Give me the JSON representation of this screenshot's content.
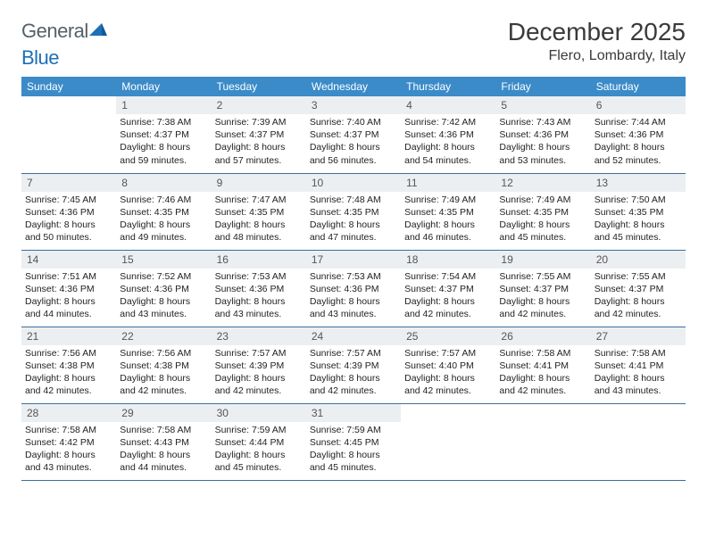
{
  "brand": {
    "part1": "General",
    "part2": "Blue"
  },
  "title": "December 2025",
  "location": "Flero, Lombardy, Italy",
  "colors": {
    "header_bg": "#3b8bc9",
    "header_text": "#ffffff",
    "daynum_bg": "#eceff1",
    "border": "#3b6fa0",
    "logo_gray": "#55606a",
    "logo_blue": "#1d6fb8"
  },
  "weekdays": [
    "Sunday",
    "Monday",
    "Tuesday",
    "Wednesday",
    "Thursday",
    "Friday",
    "Saturday"
  ],
  "weeks": [
    [
      {
        "n": "",
        "l1": "",
        "l2": "",
        "l3": "",
        "l4": ""
      },
      {
        "n": "1",
        "l1": "Sunrise: 7:38 AM",
        "l2": "Sunset: 4:37 PM",
        "l3": "Daylight: 8 hours",
        "l4": "and 59 minutes."
      },
      {
        "n": "2",
        "l1": "Sunrise: 7:39 AM",
        "l2": "Sunset: 4:37 PM",
        "l3": "Daylight: 8 hours",
        "l4": "and 57 minutes."
      },
      {
        "n": "3",
        "l1": "Sunrise: 7:40 AM",
        "l2": "Sunset: 4:37 PM",
        "l3": "Daylight: 8 hours",
        "l4": "and 56 minutes."
      },
      {
        "n": "4",
        "l1": "Sunrise: 7:42 AM",
        "l2": "Sunset: 4:36 PM",
        "l3": "Daylight: 8 hours",
        "l4": "and 54 minutes."
      },
      {
        "n": "5",
        "l1": "Sunrise: 7:43 AM",
        "l2": "Sunset: 4:36 PM",
        "l3": "Daylight: 8 hours",
        "l4": "and 53 minutes."
      },
      {
        "n": "6",
        "l1": "Sunrise: 7:44 AM",
        "l2": "Sunset: 4:36 PM",
        "l3": "Daylight: 8 hours",
        "l4": "and 52 minutes."
      }
    ],
    [
      {
        "n": "7",
        "l1": "Sunrise: 7:45 AM",
        "l2": "Sunset: 4:36 PM",
        "l3": "Daylight: 8 hours",
        "l4": "and 50 minutes."
      },
      {
        "n": "8",
        "l1": "Sunrise: 7:46 AM",
        "l2": "Sunset: 4:35 PM",
        "l3": "Daylight: 8 hours",
        "l4": "and 49 minutes."
      },
      {
        "n": "9",
        "l1": "Sunrise: 7:47 AM",
        "l2": "Sunset: 4:35 PM",
        "l3": "Daylight: 8 hours",
        "l4": "and 48 minutes."
      },
      {
        "n": "10",
        "l1": "Sunrise: 7:48 AM",
        "l2": "Sunset: 4:35 PM",
        "l3": "Daylight: 8 hours",
        "l4": "and 47 minutes."
      },
      {
        "n": "11",
        "l1": "Sunrise: 7:49 AM",
        "l2": "Sunset: 4:35 PM",
        "l3": "Daylight: 8 hours",
        "l4": "and 46 minutes."
      },
      {
        "n": "12",
        "l1": "Sunrise: 7:49 AM",
        "l2": "Sunset: 4:35 PM",
        "l3": "Daylight: 8 hours",
        "l4": "and 45 minutes."
      },
      {
        "n": "13",
        "l1": "Sunrise: 7:50 AM",
        "l2": "Sunset: 4:35 PM",
        "l3": "Daylight: 8 hours",
        "l4": "and 45 minutes."
      }
    ],
    [
      {
        "n": "14",
        "l1": "Sunrise: 7:51 AM",
        "l2": "Sunset: 4:36 PM",
        "l3": "Daylight: 8 hours",
        "l4": "and 44 minutes."
      },
      {
        "n": "15",
        "l1": "Sunrise: 7:52 AM",
        "l2": "Sunset: 4:36 PM",
        "l3": "Daylight: 8 hours",
        "l4": "and 43 minutes."
      },
      {
        "n": "16",
        "l1": "Sunrise: 7:53 AM",
        "l2": "Sunset: 4:36 PM",
        "l3": "Daylight: 8 hours",
        "l4": "and 43 minutes."
      },
      {
        "n": "17",
        "l1": "Sunrise: 7:53 AM",
        "l2": "Sunset: 4:36 PM",
        "l3": "Daylight: 8 hours",
        "l4": "and 43 minutes."
      },
      {
        "n": "18",
        "l1": "Sunrise: 7:54 AM",
        "l2": "Sunset: 4:37 PM",
        "l3": "Daylight: 8 hours",
        "l4": "and 42 minutes."
      },
      {
        "n": "19",
        "l1": "Sunrise: 7:55 AM",
        "l2": "Sunset: 4:37 PM",
        "l3": "Daylight: 8 hours",
        "l4": "and 42 minutes."
      },
      {
        "n": "20",
        "l1": "Sunrise: 7:55 AM",
        "l2": "Sunset: 4:37 PM",
        "l3": "Daylight: 8 hours",
        "l4": "and 42 minutes."
      }
    ],
    [
      {
        "n": "21",
        "l1": "Sunrise: 7:56 AM",
        "l2": "Sunset: 4:38 PM",
        "l3": "Daylight: 8 hours",
        "l4": "and 42 minutes."
      },
      {
        "n": "22",
        "l1": "Sunrise: 7:56 AM",
        "l2": "Sunset: 4:38 PM",
        "l3": "Daylight: 8 hours",
        "l4": "and 42 minutes."
      },
      {
        "n": "23",
        "l1": "Sunrise: 7:57 AM",
        "l2": "Sunset: 4:39 PM",
        "l3": "Daylight: 8 hours",
        "l4": "and 42 minutes."
      },
      {
        "n": "24",
        "l1": "Sunrise: 7:57 AM",
        "l2": "Sunset: 4:39 PM",
        "l3": "Daylight: 8 hours",
        "l4": "and 42 minutes."
      },
      {
        "n": "25",
        "l1": "Sunrise: 7:57 AM",
        "l2": "Sunset: 4:40 PM",
        "l3": "Daylight: 8 hours",
        "l4": "and 42 minutes."
      },
      {
        "n": "26",
        "l1": "Sunrise: 7:58 AM",
        "l2": "Sunset: 4:41 PM",
        "l3": "Daylight: 8 hours",
        "l4": "and 42 minutes."
      },
      {
        "n": "27",
        "l1": "Sunrise: 7:58 AM",
        "l2": "Sunset: 4:41 PM",
        "l3": "Daylight: 8 hours",
        "l4": "and 43 minutes."
      }
    ],
    [
      {
        "n": "28",
        "l1": "Sunrise: 7:58 AM",
        "l2": "Sunset: 4:42 PM",
        "l3": "Daylight: 8 hours",
        "l4": "and 43 minutes."
      },
      {
        "n": "29",
        "l1": "Sunrise: 7:58 AM",
        "l2": "Sunset: 4:43 PM",
        "l3": "Daylight: 8 hours",
        "l4": "and 44 minutes."
      },
      {
        "n": "30",
        "l1": "Sunrise: 7:59 AM",
        "l2": "Sunset: 4:44 PM",
        "l3": "Daylight: 8 hours",
        "l4": "and 45 minutes."
      },
      {
        "n": "31",
        "l1": "Sunrise: 7:59 AM",
        "l2": "Sunset: 4:45 PM",
        "l3": "Daylight: 8 hours",
        "l4": "and 45 minutes."
      },
      {
        "n": "",
        "l1": "",
        "l2": "",
        "l3": "",
        "l4": ""
      },
      {
        "n": "",
        "l1": "",
        "l2": "",
        "l3": "",
        "l4": ""
      },
      {
        "n": "",
        "l1": "",
        "l2": "",
        "l3": "",
        "l4": ""
      }
    ]
  ]
}
